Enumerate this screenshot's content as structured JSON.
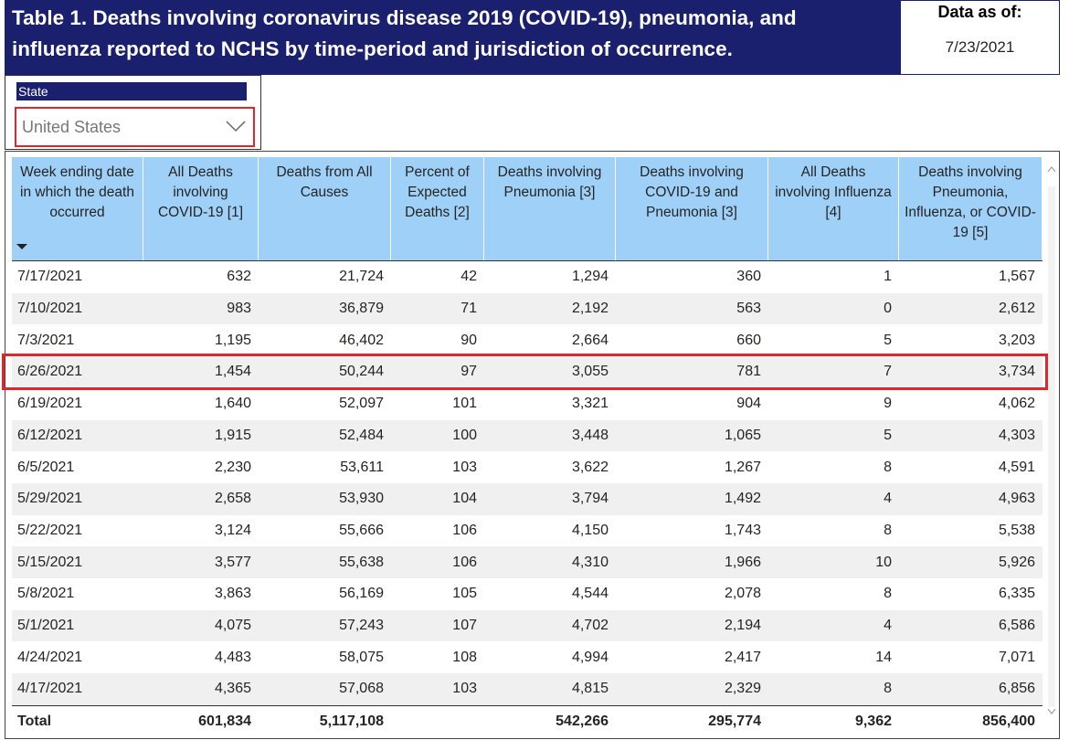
{
  "header": {
    "title": "Table 1. Deaths involving coronavirus disease 2019 (COVID-19), pneumonia, and influenza reported to NCHS by time-period and jurisdiction of occurrence.",
    "data_as_of_label": "Data as of:",
    "data_as_of_date": "7/23/2021"
  },
  "filter": {
    "label": "State",
    "value": "United States"
  },
  "table": {
    "columns": [
      "Week ending date in which the death occurred",
      "All Deaths involving COVID-19 [1]",
      "Deaths from All Causes",
      "Percent of Expected Deaths [2]",
      "Deaths involving Pneumonia [3]",
      "Deaths involving COVID-19 and Pneumonia [3]",
      "All Deaths involving Influenza [4]",
      "Deaths involving Pneumonia, Influenza, or COVID-19 [5]"
    ],
    "rows": [
      [
        "7/17/2021",
        "632",
        "21,724",
        "42",
        "1,294",
        "360",
        "1",
        "1,567"
      ],
      [
        "7/10/2021",
        "983",
        "36,879",
        "71",
        "2,192",
        "563",
        "0",
        "2,612"
      ],
      [
        "7/3/2021",
        "1,195",
        "46,402",
        "90",
        "2,664",
        "660",
        "5",
        "3,203"
      ],
      [
        "6/26/2021",
        "1,454",
        "50,244",
        "97",
        "3,055",
        "781",
        "7",
        "3,734"
      ],
      [
        "6/19/2021",
        "1,640",
        "52,097",
        "101",
        "3,321",
        "904",
        "9",
        "4,062"
      ],
      [
        "6/12/2021",
        "1,915",
        "52,484",
        "100",
        "3,448",
        "1,065",
        "5",
        "4,303"
      ],
      [
        "6/5/2021",
        "2,230",
        "53,611",
        "103",
        "3,622",
        "1,267",
        "8",
        "4,591"
      ],
      [
        "5/29/2021",
        "2,658",
        "53,930",
        "104",
        "3,794",
        "1,492",
        "4",
        "4,963"
      ],
      [
        "5/22/2021",
        "3,124",
        "55,666",
        "106",
        "4,150",
        "1,743",
        "8",
        "5,538"
      ],
      [
        "5/15/2021",
        "3,577",
        "55,638",
        "106",
        "4,310",
        "1,966",
        "10",
        "5,926"
      ],
      [
        "5/8/2021",
        "3,863",
        "56,169",
        "105",
        "4,544",
        "2,078",
        "8",
        "6,335"
      ],
      [
        "5/1/2021",
        "4,075",
        "57,243",
        "107",
        "4,702",
        "2,194",
        "4",
        "6,586"
      ],
      [
        "4/24/2021",
        "4,483",
        "58,075",
        "108",
        "4,994",
        "2,417",
        "14",
        "7,071"
      ],
      [
        "4/17/2021",
        "4,365",
        "57,068",
        "103",
        "4,815",
        "2,329",
        "8",
        "6,856"
      ]
    ],
    "total": [
      "Total",
      "601,834",
      "5,117,108",
      null,
      "542,266",
      "295,774",
      "9,362",
      "856,400"
    ]
  }
}
